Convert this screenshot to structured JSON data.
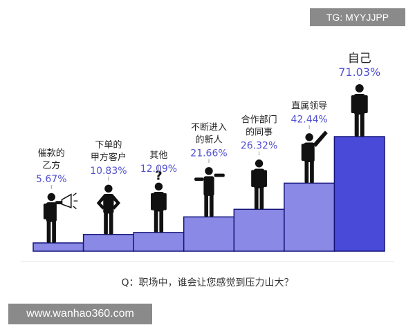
{
  "watermarks": {
    "top": "TG: MYYJJPP",
    "bottom": "www.wanhao360.com"
  },
  "colors": {
    "bar_fill": "#8a8ae6",
    "bar_highlight": "#4a4ad8",
    "bar_stroke": "#14147a",
    "value_text": "#5050d0",
    "label_text": "#222222",
    "figure": "#111111"
  },
  "chart_data": {
    "type": "bar",
    "title": "",
    "caption": "Q：职场中，谁会让您感觉到压力山大？",
    "categories": [
      [
        "催款的",
        "乙方"
      ],
      [
        "下单的",
        "甲方客户"
      ],
      [
        "其他"
      ],
      [
        "不断进入",
        "的新人"
      ],
      [
        "合作部门",
        "的同事"
      ],
      [
        "直属领导"
      ],
      [
        "自己"
      ]
    ],
    "series": [
      {
        "values": [
          5.67,
          10.83,
          12.09,
          21.66,
          26.32,
          42.44,
          71.03
        ]
      }
    ],
    "value_labels": [
      "5.67%",
      "10.83%",
      "12.09%",
      "21.66%",
      "26.32%",
      "42.44%",
      "71.03%"
    ],
    "figures": [
      "megaphone-person-icon",
      "arms-akimbo-person-icon",
      "question-person-icon",
      "climbing-person-icon",
      "thinking-person-icon",
      "pointing-person-icon",
      "standing-person-icon"
    ],
    "question_mark": "?",
    "xlabel": "",
    "ylabel": "",
    "ylim": [
      0,
      71.03
    ],
    "grid": false,
    "legend": "none"
  }
}
